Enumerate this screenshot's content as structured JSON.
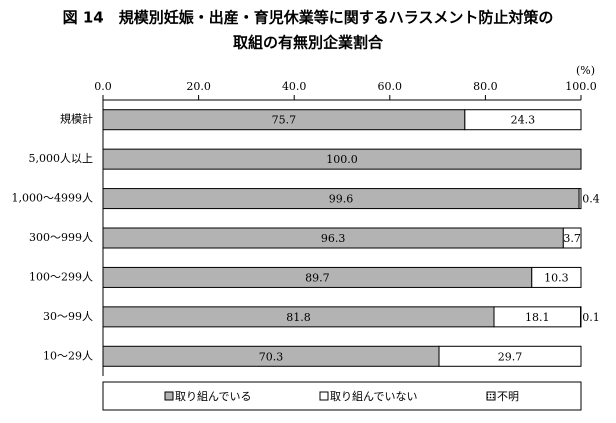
{
  "chart_data": {
    "type": "stacked-bar-horizontal",
    "title": [
      "図 14　規模別妊娠・出産・育児休業等に関するハラスメント防止対策の",
      "取組の有無別企業割合"
    ],
    "unit": "(%)",
    "categories": [
      "規模計",
      "5,000人以上",
      "1,000～4999人",
      "300～999人",
      "100～299人",
      "30～99人",
      "10～29人"
    ],
    "series": [
      {
        "name": "取り組んでいる",
        "color": "#b3b3b3",
        "values": [
          75.7,
          100,
          99.6,
          96.3,
          89.7,
          81.8,
          70.3
        ],
        "value_labels": [
          "75.7",
          "100.0",
          "99.6",
          "96.3",
          "89.7",
          "81.8",
          "70.3"
        ]
      },
      {
        "name": "取り組んでいない",
        "color": "#ffffff",
        "values": [
          24.3,
          0,
          0.4,
          3.7,
          10.3,
          18.1,
          29.7
        ],
        "value_labels": [
          "24.3",
          null,
          "0.4",
          "3.7",
          "10.3",
          "18.1",
          "29.7"
        ]
      },
      {
        "name": "不明",
        "color": "#000000",
        "values": [
          0,
          0,
          0,
          0,
          0,
          0.1,
          0
        ],
        "value_labels": [
          null,
          null,
          null,
          null,
          null,
          "0.1",
          null
        ]
      }
    ],
    "xlim": [
      0,
      100
    ],
    "xticks": [
      {
        "value": 0,
        "label": "0.0"
      },
      {
        "value": 20,
        "label": "20.0"
      },
      {
        "value": 40,
        "label": "40.0"
      },
      {
        "value": 60,
        "label": "60.0"
      },
      {
        "value": 80,
        "label": "80.0"
      },
      {
        "value": 100,
        "label": "100.0"
      }
    ]
  }
}
